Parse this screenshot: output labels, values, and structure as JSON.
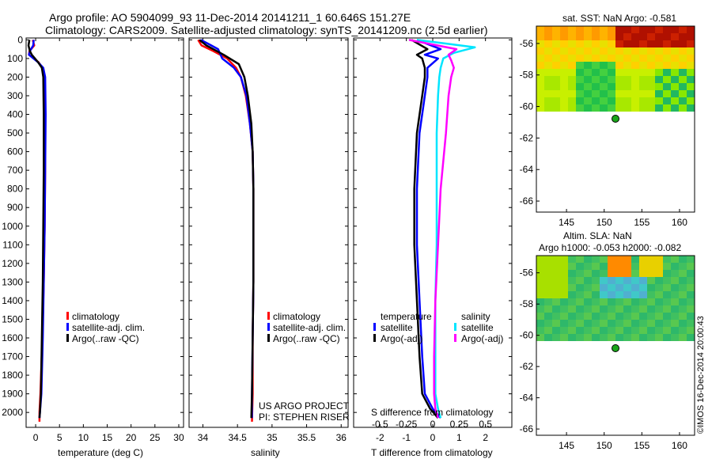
{
  "header": {
    "title_line1": "Argo profile: AO 5904099_93 11-Dec-2014 20141211_1 60.646S 151.27E",
    "title_line2": "Climatology: CARS2009. Satellite-adjusted climatology: synTS_20141209.nc (2.5d earlier)"
  },
  "colors": {
    "clim": "#ff0000",
    "sat": "#0000ff",
    "argo": "#000000",
    "sal_sat": "#00e5ff",
    "sal_argo": "#ff00ff"
  },
  "chart_data": [
    {
      "type": "line",
      "id": "temperature",
      "xlabel": "temperature (deg C)",
      "xlim": [
        -2,
        31
      ],
      "ylim": [
        2080,
        -10
      ],
      "xticks": [
        0,
        5,
        10,
        15,
        20,
        25,
        30
      ],
      "yticks": [
        0,
        100,
        200,
        300,
        400,
        500,
        600,
        700,
        800,
        900,
        1000,
        1100,
        1200,
        1300,
        1400,
        1500,
        1600,
        1700,
        1800,
        1900,
        2000
      ],
      "legend": [
        "climatology",
        "satellite-adj. clim.",
        "Argo(..raw -QC)"
      ],
      "series": [
        {
          "name": "climatology",
          "color": "#ff0000",
          "x": [
            -0.6,
            -0.3,
            -1.3,
            -1.4,
            0.6,
            1.4,
            1.8,
            2.0,
            2.0,
            1.9,
            1.7,
            1.4,
            1.0,
            0.8,
            0.8
          ],
          "y": [
            0,
            30,
            60,
            80,
            120,
            150,
            200,
            400,
            700,
            1000,
            1300,
            1600,
            1900,
            2000,
            2050
          ]
        },
        {
          "name": "satellite-adj. clim.",
          "color": "#0000ff",
          "x": [
            -0.4,
            -0.5,
            -1.2,
            -1.4,
            0.5,
            1.6,
            2.0,
            2.1,
            2.0,
            1.9,
            1.7,
            1.5,
            1.2,
            0.9,
            0.8
          ],
          "y": [
            0,
            30,
            60,
            80,
            120,
            150,
            200,
            400,
            700,
            1000,
            1300,
            1600,
            1900,
            2000,
            2030
          ]
        },
        {
          "name": "Argo(..raw -QC)",
          "color": "#000000",
          "x": [
            -1.3,
            -1.5,
            -1.2,
            -0.8,
            0.5,
            1.3,
            1.6,
            1.7,
            1.7,
            1.6,
            1.5,
            1.3,
            1.1,
            0.9,
            0.8
          ],
          "y": [
            0,
            30,
            60,
            80,
            120,
            150,
            200,
            400,
            700,
            1000,
            1300,
            1600,
            1900,
            2000,
            2030
          ]
        }
      ]
    },
    {
      "type": "line",
      "id": "salinity",
      "xlabel": "salinity",
      "xlim": [
        33.8,
        36.1
      ],
      "ylim": [
        2080,
        -10
      ],
      "xticks": [
        34,
        34.5,
        35,
        35.5,
        36
      ],
      "legend": [
        "climatology",
        "satellite-adj. clim.",
        "Argo(..raw -QC)"
      ],
      "annotation_line1": "US ARGO PROJECT",
      "annotation_line2": "PI: STEPHEN RISER",
      "series": [
        {
          "name": "climatology",
          "color": "#ff0000",
          "x": [
            33.93,
            33.98,
            34.15,
            34.35,
            34.48,
            34.55,
            34.62,
            34.68,
            34.72,
            34.73,
            34.73,
            34.73,
            34.72,
            34.72,
            34.71
          ],
          "y": [
            0,
            30,
            60,
            100,
            150,
            200,
            300,
            450,
            600,
            800,
            1000,
            1300,
            1600,
            1900,
            2050
          ]
        },
        {
          "name": "satellite-adj. clim.",
          "color": "#0000ff",
          "x": [
            33.97,
            34.12,
            34.22,
            34.28,
            34.45,
            34.55,
            34.63,
            34.68,
            34.72,
            34.73,
            34.73,
            34.73,
            34.72,
            34.71,
            34.71
          ],
          "y": [
            0,
            30,
            50,
            100,
            150,
            200,
            300,
            450,
            600,
            800,
            1000,
            1300,
            1600,
            1900,
            2030
          ]
        },
        {
          "name": "Argo(..raw -QC)",
          "color": "#000000",
          "x": [
            33.95,
            34.05,
            34.3,
            34.52,
            34.6,
            34.65,
            34.7,
            34.72,
            34.73,
            34.73,
            34.73,
            34.72,
            34.71,
            34.7
          ],
          "y": [
            0,
            30,
            80,
            130,
            200,
            300,
            450,
            600,
            800,
            1000,
            1300,
            1600,
            1900,
            2030
          ]
        }
      ]
    },
    {
      "type": "line",
      "id": "difference",
      "xlabel": "T difference from climatology",
      "xlabel_top": "S difference from climatology",
      "xlim": [
        -3,
        3
      ],
      "ylim": [
        2080,
        -10
      ],
      "xticks": [
        -2,
        -1,
        0,
        1,
        2
      ],
      "top_ticks": [
        "-0.5",
        "-0.25",
        "0",
        "0.25",
        "0.5"
      ],
      "top_tick_positions": [
        -2,
        -1,
        0,
        1,
        2
      ],
      "legend_title_t": "temperature",
      "legend_title_s": "salinity",
      "legend": [
        "satellite",
        "Argo(-adj)",
        "satellite",
        "Argo(-adj)"
      ],
      "series": [
        {
          "name": "T satellite",
          "color": "#0000ff",
          "x": [
            -0.6,
            0.3,
            -0.3,
            0.2,
            -0.2,
            -0.2,
            -0.3,
            -0.5,
            -0.6,
            -0.6,
            -0.5,
            -0.4,
            -0.3,
            0.0,
            0.3
          ],
          "y": [
            0,
            50,
            80,
            100,
            150,
            200,
            300,
            500,
            800,
            1100,
            1400,
            1700,
            1900,
            1980,
            2030
          ]
        },
        {
          "name": "T Argo(-adj)",
          "color": "#000000",
          "x": [
            -0.8,
            -0.2,
            -0.6,
            -0.4,
            -0.3,
            -0.3,
            -0.4,
            -0.6,
            -0.7,
            -0.7,
            -0.6,
            -0.5,
            -0.4,
            -0.1,
            0.2
          ],
          "y": [
            0,
            50,
            80,
            100,
            150,
            200,
            300,
            500,
            800,
            1100,
            1400,
            1700,
            1900,
            1980,
            2030
          ]
        },
        {
          "name": "S satellite",
          "color": "#00e5ff",
          "x": [
            -0.6,
            1.6,
            0.8,
            0.4,
            0.3,
            0.25,
            0.2,
            0.15,
            0.15,
            0.15,
            0.1,
            0.1,
            0.1,
            0.2,
            0.3
          ],
          "y": [
            0,
            40,
            70,
            100,
            150,
            200,
            300,
            500,
            800,
            1100,
            1400,
            1700,
            1900,
            1980,
            2030
          ]
        },
        {
          "name": "S Argo(-adj)",
          "color": "#ff00ff",
          "x": [
            -0.9,
            0.9,
            0.6,
            0.7,
            0.8,
            0.7,
            0.6,
            0.5,
            0.3,
            0.2,
            0.1,
            0.05,
            0.05,
            0.1,
            0.2
          ],
          "y": [
            0,
            50,
            80,
            110,
            150,
            200,
            300,
            500,
            800,
            1100,
            1400,
            1700,
            1900,
            1980,
            2030
          ]
        }
      ]
    }
  ],
  "maps": {
    "sst": {
      "title": "sat. SST: NaN Argo: -0.581",
      "xticks": [
        "145",
        "150",
        "155",
        "160"
      ],
      "yticks": [
        "-56",
        "-58",
        "-60",
        "-62",
        "-64",
        "-66"
      ]
    },
    "sla": {
      "title_line1": "Altim. SLA: NaN",
      "title_line2": "Argo h1000: -0.053 h2000: -0.082",
      "xticks": [
        "145",
        "150",
        "155",
        "160"
      ],
      "yticks": [
        "-56",
        "-58",
        "-60",
        "-62",
        "-64",
        "-66"
      ]
    }
  },
  "credit": "©IMOS 16-Dec-2014 20:00:43"
}
